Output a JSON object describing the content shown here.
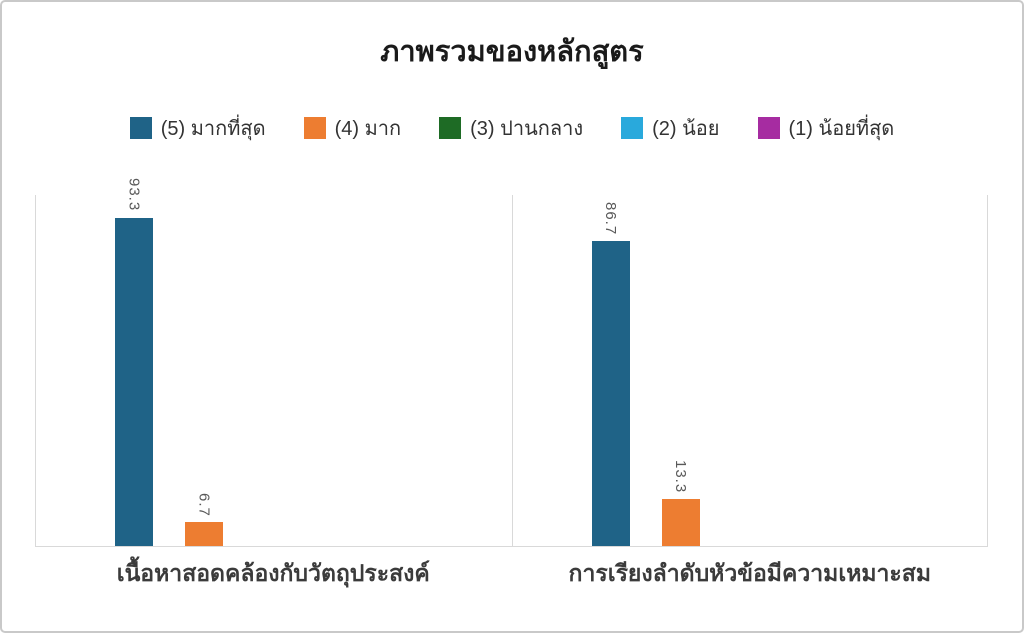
{
  "chart_data": {
    "type": "bar",
    "title": "ภาพรวมของหลักสูตร",
    "categories": [
      "เนื้อหาสอดคล้องกับวัตถุประสงค์",
      "การเรียงลำดับหัวข้อมีความเหมาะสม"
    ],
    "series": [
      {
        "name": "(5) มากที่สุด",
        "color": "#1F6387",
        "values": [
          93.3,
          86.7
        ]
      },
      {
        "name": "(4) มาก",
        "color": "#ED7D31",
        "values": [
          6.7,
          13.3
        ]
      },
      {
        "name": "(3) ปานกลาง",
        "color": "#1E6B25",
        "values": [
          0,
          0
        ]
      },
      {
        "name": "(2) น้อย",
        "color": "#29A9DC",
        "values": [
          0,
          0
        ]
      },
      {
        "name": "(1) น้อยที่สุด",
        "color": "#A62CA1",
        "values": [
          0,
          0
        ]
      }
    ],
    "ylim": [
      0,
      100
    ],
    "grid": false,
    "legend_position": "top",
    "data_label_decimals": 1,
    "data_labels_shown": [
      "93.3",
      "6.7",
      "86.7",
      "13.3"
    ],
    "theme": {
      "border_color": "#c9c9c9",
      "axis_line_color": "#d9d9d9",
      "title_color": "#1a1a1a",
      "legend_text_color": "#333333",
      "data_label_color": "#595959",
      "category_label_color": "#3b3b3b"
    }
  }
}
